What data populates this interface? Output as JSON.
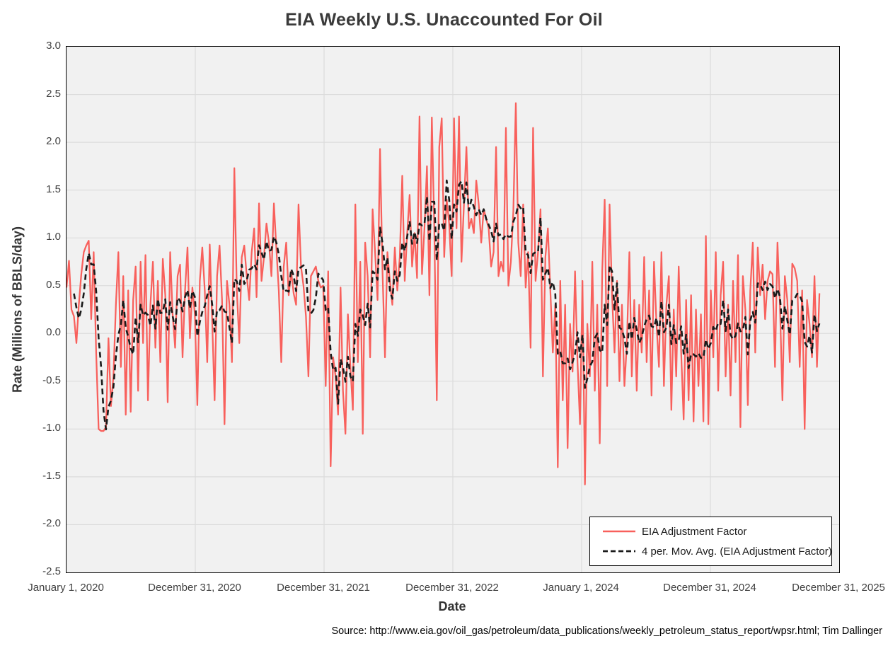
{
  "title": "EIA Weekly U.S. Unaccounted For Oil",
  "source_note": "Source: http://www.eia.gov/oil_gas/petroleum/data_publications/weekly_petroleum_status_report/wpsr.html; Tim Dallinger",
  "colors": {
    "series_line": "#F8605C",
    "moving_avg_line": "#1a1a1a",
    "plot_background": "#f1f1f1",
    "gridline": "#dcdcdc",
    "plot_border": "#000000"
  },
  "chart_data": {
    "type": "line",
    "title": "EIA Weekly U.S. Unaccounted For Oil",
    "xlabel": "Date",
    "ylabel": "Rate (Millions of BBLS/day)",
    "ylim": [
      -2.5,
      3.0
    ],
    "ytick_step": 0.5,
    "grid": true,
    "x_axis_labels": [
      "January 1, 2020",
      "December 31, 2020",
      "December 31, 2021",
      "December 31, 2022",
      "January 1, 2024",
      "December 31, 2024",
      "December 31, 2025"
    ],
    "x_span_weeks": 313,
    "interval": "weekly",
    "legend": {
      "position": "bottom-right",
      "entries": [
        {
          "label": "EIA Adjustment Factor",
          "style": "solid",
          "color": "#F8605C"
        },
        {
          "label": "4 per. Mov. Avg. (EIA Adjustment Factor)",
          "style": "dashed",
          "color": "#1a1a1a"
        }
      ]
    },
    "moving_average_periods": 4,
    "series": [
      {
        "name": "EIA Adjustment Factor",
        "start_label": "January 1, 2020",
        "values": [
          0.48,
          0.76,
          0.25,
          0.18,
          -0.1,
          0.3,
          0.62,
          0.85,
          0.92,
          0.97,
          0.15,
          0.85,
          -0.2,
          -1.0,
          -1.02,
          -1.02,
          -0.98,
          -0.05,
          -0.76,
          -0.45,
          0.3,
          0.85,
          -0.35,
          0.6,
          -0.85,
          0.45,
          -0.82,
          0.35,
          0.7,
          -0.6,
          0.75,
          -0.1,
          0.82,
          -0.7,
          0.3,
          0.75,
          -0.15,
          0.55,
          -0.3,
          0.78,
          0.4,
          -0.72,
          0.85,
          0.2,
          -0.15,
          0.6,
          0.72,
          -0.25,
          0.45,
          0.9,
          -0.05,
          0.48,
          0.2,
          -0.75,
          0.55,
          0.9,
          0.45,
          -0.3,
          0.93,
          0.15,
          -0.7,
          0.6,
          0.92,
          0.35,
          -0.95,
          0.55,
          0.3,
          -0.3,
          1.73,
          0.45,
          -0.1,
          0.8,
          0.92,
          0.6,
          0.35,
          0.85,
          1.1,
          0.38,
          1.36,
          0.55,
          0.8,
          1.15,
          0.95,
          0.6,
          1.36,
          0.9,
          0.45,
          -0.3,
          0.7,
          0.95,
          0.4,
          0.65,
          0.42,
          0.3,
          1.35,
          0.7,
          0.5,
          0.18,
          -0.45,
          0.6,
          0.65,
          0.7,
          0.55,
          0.48,
          0.5,
          -0.55,
          0.65,
          -1.39,
          -0.25,
          -0.45,
          -0.85,
          0.48,
          -0.6,
          -1.05,
          0.2,
          -0.35,
          -0.8,
          1.35,
          -0.3,
          0.75,
          -1.05,
          0.95,
          0.6,
          -0.25,
          1.3,
          0.85,
          0.35,
          1.93,
          0.65,
          -0.25,
          0.85,
          0.55,
          0.3,
          0.9,
          0.45,
          0.8,
          1.65,
          0.55,
          1.05,
          1.45,
          0.7,
          1.05,
          0.58,
          2.27,
          0.62,
          1.1,
          1.75,
          0.4,
          2.26,
          1.1,
          -0.7,
          1.95,
          2.25,
          0.8,
          1.4,
          1.15,
          0.6,
          2.25,
          1.1,
          2.27,
          0.75,
          1.35,
          1.95,
          1.1,
          1.2,
          1.05,
          1.6,
          1.35,
          0.95,
          1.3,
          1.2,
          1.1,
          0.7,
          0.85,
          1.95,
          0.6,
          0.75,
          0.65,
          2.15,
          0.5,
          0.75,
          1.28,
          2.41,
          0.95,
          0.6,
          1.35,
          0.48,
          0.85,
          -0.15,
          2.15,
          0.55,
          0.85,
          1.3,
          -0.45,
          0.8,
          1.1,
          0.45,
          -0.2,
          0.3,
          -1.4,
          0.55,
          -0.7,
          0.3,
          -1.2,
          0.1,
          -0.4,
          0.65,
          -0.3,
          -0.95,
          0.55,
          -1.58,
          0.1,
          -0.45,
          0.75,
          -0.6,
          0.3,
          -1.15,
          0.65,
          1.4,
          -0.55,
          1.35,
          0.4,
          -0.2,
          0.55,
          -0.5,
          0.3,
          -0.55,
          -0.1,
          0.85,
          -0.45,
          0.35,
          -0.6,
          0.3,
          -0.2,
          0.8,
          -0.3,
          0.45,
          -0.65,
          0.75,
          0.1,
          -0.35,
          0.85,
          -0.55,
          0.3,
          0.6,
          -0.8,
          0.25,
          -0.45,
          0.7,
          -0.2,
          -0.9,
          0.35,
          -0.7,
          0.4,
          -0.92,
          0.25,
          -0.55,
          0.2,
          -0.92,
          1.02,
          -0.95,
          0.45,
          -0.25,
          0.85,
          -0.6,
          0.4,
          0.75,
          -0.45,
          0.3,
          -0.65,
          0.55,
          -0.3,
          0.82,
          -0.98,
          0.6,
          0.25,
          -0.75,
          0.45,
          0.95,
          -0.2,
          0.9,
          0.4,
          0.72,
          0.15,
          0.55,
          0.65,
          0.62,
          -0.35,
          0.95,
          0.3,
          -0.7,
          0.6,
          0.35,
          -0.3,
          0.73,
          0.68,
          0.55,
          -0.35,
          0.45,
          -1.0,
          0.35,
          0.1,
          -0.25,
          0.6,
          -0.35,
          0.42
        ]
      }
    ]
  }
}
